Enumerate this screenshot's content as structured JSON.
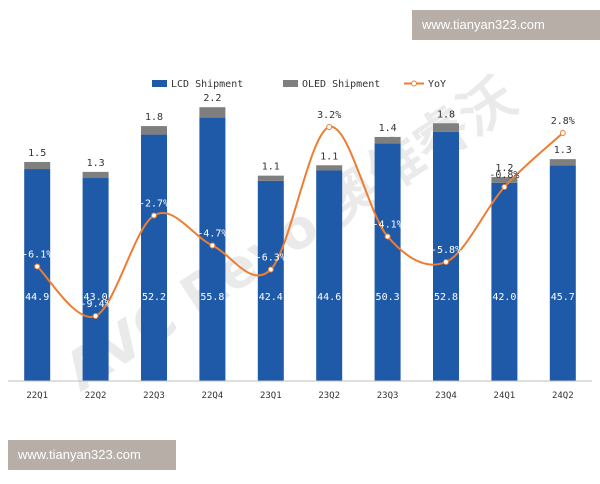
{
  "watermarks": {
    "top": "www.tianyan323.com",
    "bottom": "www.tianyan323.com",
    "logo": "AVC Revo 奥维睿沃"
  },
  "chart_data": {
    "type": "bar",
    "title": "",
    "xlabel": "",
    "ylabel": "",
    "categories": [
      "22Q1",
      "22Q2",
      "22Q3",
      "22Q4",
      "23Q1",
      "23Q2",
      "23Q3",
      "23Q4",
      "24Q1",
      "24Q2"
    ],
    "series": [
      {
        "name": "LCD Shipment",
        "type": "bar",
        "stack": "shipment",
        "color": "#1f5aa8",
        "values": [
          44.9,
          43.0,
          52.2,
          55.8,
          42.4,
          44.6,
          50.3,
          52.8,
          42.0,
          45.7
        ],
        "labels": [
          "44.9",
          "43.0",
          "52.2",
          "55.8",
          "42.4",
          "44.6",
          "50.3",
          "52.8",
          "42.0",
          "45.7"
        ]
      },
      {
        "name": "OLED Shipment",
        "type": "bar",
        "stack": "shipment",
        "color": "#7f7f7f",
        "values": [
          1.5,
          1.3,
          1.8,
          2.2,
          1.1,
          1.1,
          1.4,
          1.8,
          1.2,
          1.3
        ],
        "labels": [
          "1.5",
          "1.3",
          "1.8",
          "2.2",
          "1.1",
          "1.1",
          "1.4",
          "1.8",
          "1.2",
          "1.3"
        ]
      },
      {
        "name": "YoY",
        "type": "line",
        "axis": "secondary",
        "color": "#ed7d31",
        "values": [
          -6.1,
          -9.4,
          -2.7,
          -4.7,
          -6.3,
          3.2,
          -4.1,
          -5.8,
          -0.8,
          2.8
        ],
        "labels": [
          "-6.1%",
          "-9.4%",
          "-2.7%",
          "-4.7%",
          "-6.3%",
          "3.2%",
          "-4.1%",
          "-5.8%",
          "-0.8%",
          "2.8%"
        ]
      }
    ],
    "ylim": [
      0,
      68
    ],
    "y2lim": [
      -11,
      5
    ],
    "grid": false,
    "legend": "top-center"
  }
}
